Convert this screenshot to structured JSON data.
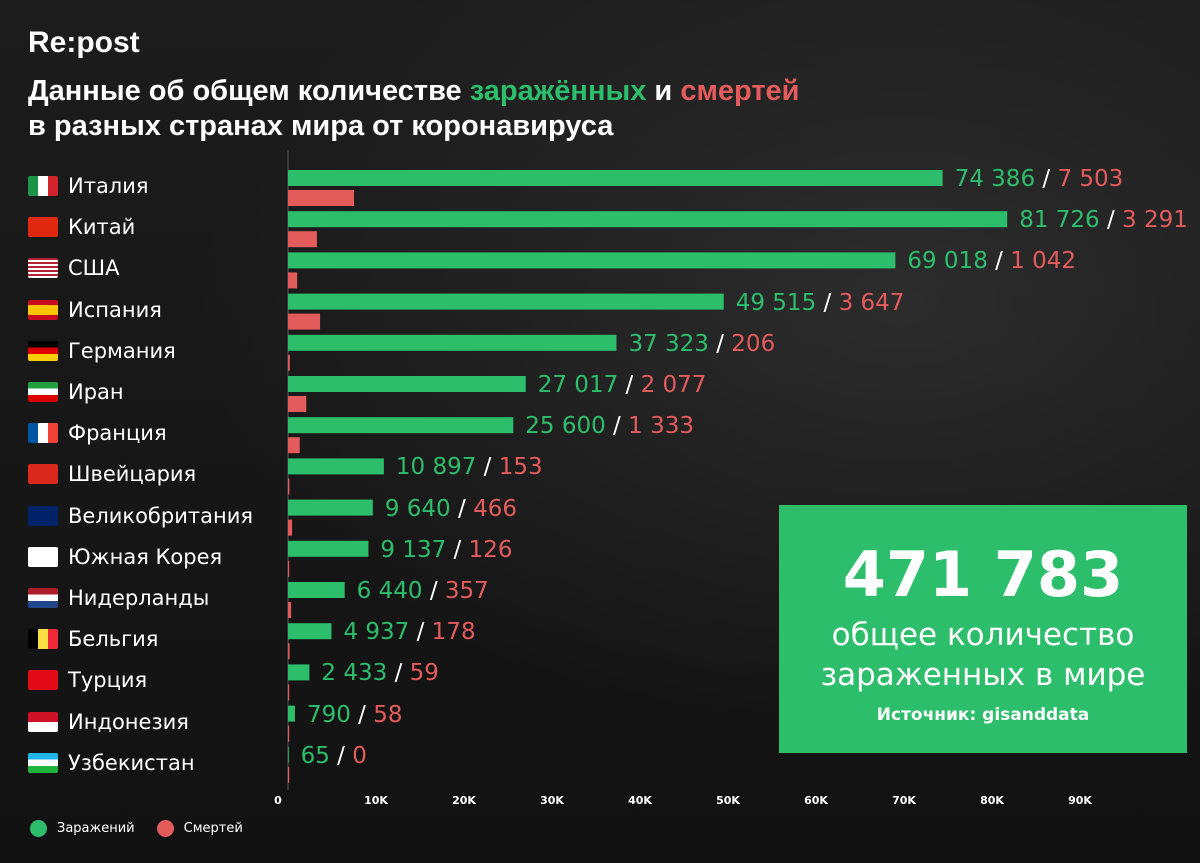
{
  "brand": "Re:post",
  "title": {
    "part1": "Данные об общем количестве ",
    "highlight_infected": "заражённых",
    "part2": " и ",
    "highlight_deaths": "смертей",
    "line2": "в разных странах мира от коронавируса"
  },
  "colors": {
    "infected": "#2dbe6c",
    "deaths": "#e45b5b",
    "background": "#161616"
  },
  "chart_data": {
    "type": "bar",
    "orientation": "horizontal",
    "categories": [
      "Италия",
      "Китай",
      "США",
      "Испания",
      "Германия",
      "Иран",
      "Франция",
      "Швейцария",
      "Великобритания",
      "Южная Корея",
      "Нидерланды",
      "Бельгия",
      "Турция",
      "Индонезия",
      "Узбекистан"
    ],
    "series": [
      {
        "name": "Заражений",
        "values": [
          74386,
          81726,
          69018,
          49515,
          37323,
          27017,
          25600,
          10897,
          9640,
          9137,
          6440,
          4937,
          2433,
          790,
          65
        ]
      },
      {
        "name": "Смертей",
        "values": [
          7503,
          3291,
          1042,
          3647,
          206,
          2077,
          1333,
          153,
          466,
          126,
          357,
          178,
          59,
          58,
          0
        ]
      }
    ],
    "value_labels": [
      {
        "infected": "74 386",
        "deaths": "7 503"
      },
      {
        "infected": "81 726",
        "deaths": "3 291"
      },
      {
        "infected": "69 018",
        "deaths": "1 042"
      },
      {
        "infected": "49 515",
        "deaths": "3 647"
      },
      {
        "infected": "37 323",
        "deaths": "206"
      },
      {
        "infected": "27 017",
        "deaths": "2 077"
      },
      {
        "infected": "25 600",
        "deaths": "1 333"
      },
      {
        "infected": "10 897",
        "deaths": "153"
      },
      {
        "infected": "9 640",
        "deaths": "466"
      },
      {
        "infected": "9 137",
        "deaths": "126"
      },
      {
        "infected": "6 440",
        "deaths": "357"
      },
      {
        "infected": "4 937",
        "deaths": "178"
      },
      {
        "infected": "2 433",
        "deaths": "59"
      },
      {
        "infected": "790",
        "deaths": "58"
      },
      {
        "infected": "65",
        "deaths": "0"
      }
    ],
    "value_separator": "/",
    "flag_icons": [
      "italy-flag-icon",
      "china-flag-icon",
      "usa-flag-icon",
      "spain-flag-icon",
      "germany-flag-icon",
      "iran-flag-icon",
      "france-flag-icon",
      "switzerland-flag-icon",
      "uk-flag-icon",
      "south-korea-flag-icon",
      "netherlands-flag-icon",
      "belgium-flag-icon",
      "turkey-flag-icon",
      "indonesia-flag-icon",
      "uzbekistan-flag-icon"
    ],
    "x_ticks": [
      0,
      10000,
      20000,
      30000,
      40000,
      50000,
      60000,
      70000,
      80000,
      90000
    ],
    "x_tick_labels": [
      "0",
      "10K",
      "20K",
      "30K",
      "40K",
      "50K",
      "60K",
      "70K",
      "80K",
      "90K"
    ],
    "xlim": [
      0,
      90000
    ],
    "grid": false,
    "legend_position": "bottom-left"
  },
  "legend": {
    "infected_label": "Заражений",
    "deaths_label": "Смертей"
  },
  "total": {
    "number": "471 783",
    "caption": "общее количество зараженных в мире",
    "source": "Источник: gisanddata"
  }
}
